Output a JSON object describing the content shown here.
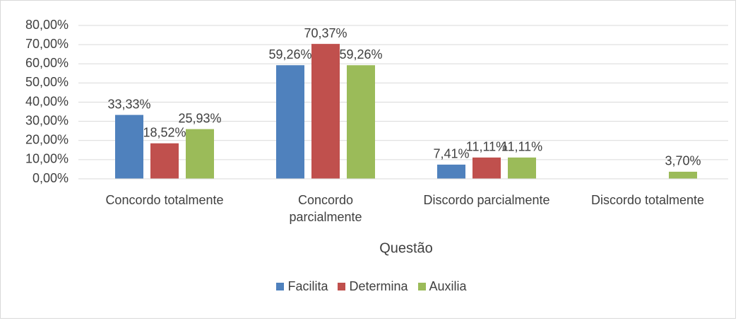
{
  "chart_data": {
    "type": "bar",
    "x_label": "Questão",
    "categories": [
      "Concordo totalmente",
      "Concordo parcialmente",
      "Discordo parcialmente",
      "Discordo totalmente"
    ],
    "series": [
      {
        "name": "Facilita",
        "color": "#4f81bd",
        "values": [
          33.33,
          59.26,
          7.41,
          null
        ],
        "value_labels": [
          "33,33%",
          "59,26%",
          "7,41%",
          null
        ]
      },
      {
        "name": "Determina",
        "color": "#c0504d",
        "values": [
          18.52,
          70.37,
          11.11,
          null
        ],
        "value_labels": [
          "18,52%",
          "70,37%",
          "11,11%",
          null
        ]
      },
      {
        "name": "Auxilia",
        "color": "#9bbb59",
        "values": [
          25.93,
          59.26,
          11.11,
          3.7
        ],
        "value_labels": [
          "25,93%",
          "59,26%",
          "11,11%",
          "3,70%"
        ]
      }
    ],
    "ylim": [
      0,
      80
    ],
    "yticks": [
      {
        "value": 0,
        "label": "0,00%"
      },
      {
        "value": 10,
        "label": "10,00%"
      },
      {
        "value": 20,
        "label": "20,00%"
      },
      {
        "value": 30,
        "label": "30,00%"
      },
      {
        "value": 40,
        "label": "40,00%"
      },
      {
        "value": 50,
        "label": "50,00%"
      },
      {
        "value": 60,
        "label": "60,00%"
      },
      {
        "value": 70,
        "label": "70,00%"
      },
      {
        "value": 80,
        "label": "80,00%"
      }
    ],
    "grid": true,
    "legend": "bottom"
  }
}
